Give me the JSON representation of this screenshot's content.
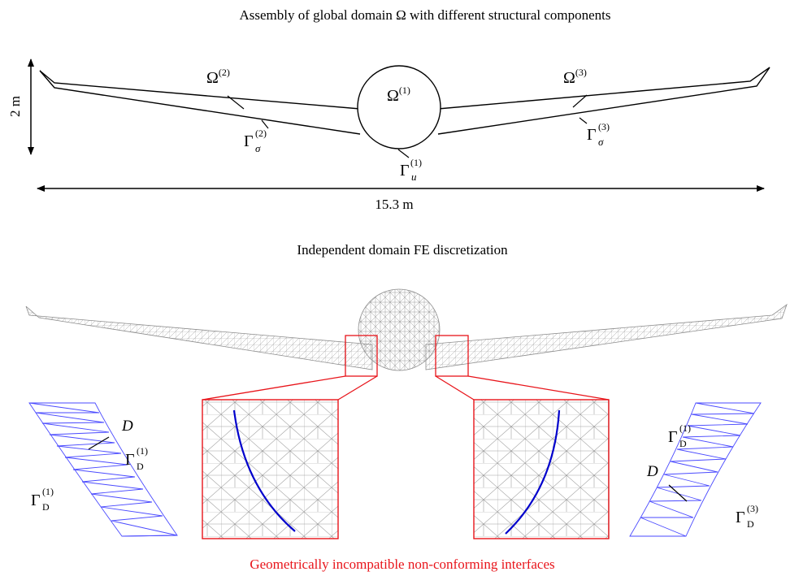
{
  "titles": {
    "top": "Assembly of global domain Ω with different structural components",
    "middle": "Independent domain FE discretization",
    "bottom": "Geometrically incompatible non-conforming interfaces"
  },
  "dimensions": {
    "height": "2 m",
    "span": "15.3 m"
  },
  "labels": {
    "omega": "Ω",
    "gamma": "Γ",
    "sup1": "(1)",
    "sup2": "(2)",
    "sup3": "(3)",
    "sub_sigma": "σ",
    "sub_u": "u",
    "sub_D": "D",
    "D": "D"
  },
  "colors": {
    "outline": "#000000",
    "mesh": "#8c8c8c",
    "interface_mesh": "#4a4aff",
    "interface_curve": "#0000cc",
    "highlight": "#e8141a"
  }
}
